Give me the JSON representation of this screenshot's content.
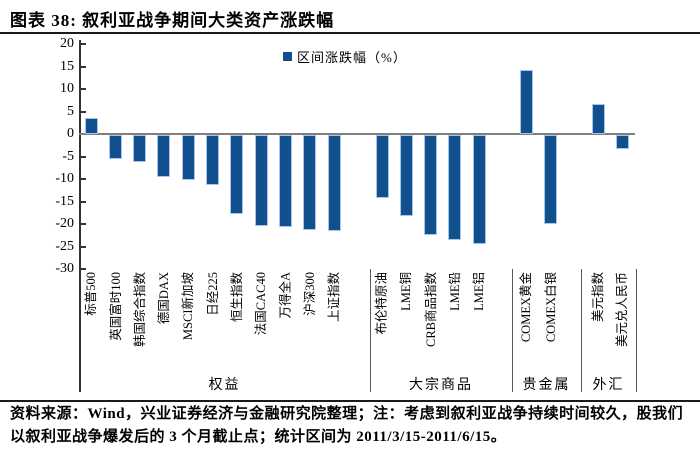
{
  "header": {
    "title": "图表 38:  叙利亚战争期间大类资产涨跌幅"
  },
  "chart_data": {
    "type": "bar",
    "title": "图表 38: 叙利亚战争期间大类资产涨跌幅",
    "legend": "区间涨跌幅（%）",
    "legend_position": "top-center",
    "grid": false,
    "ylim": [
      -30,
      20
    ],
    "ytick_step": 5,
    "ytick_labels": [
      "20",
      "15",
      "10",
      "5",
      "0",
      "-5",
      "-10",
      "-15",
      "-20",
      "-25",
      "-30"
    ],
    "bar_color": "#10508F",
    "bar_border_color": "#A9C5E8",
    "zero_line_color": "#7f7f7f",
    "groups": [
      {
        "label": "权益",
        "categories": [
          "标普500",
          "英国富时100",
          "韩国综合指数",
          "德国DAX",
          "MSCI新加坡",
          "日经225",
          "恒生指数",
          "法国CAC40",
          "万得全A",
          "沪深300",
          "上证指数"
        ],
        "values": [
          3.5,
          -5.3,
          -5.9,
          -9.4,
          -9.9,
          -11.0,
          -17.6,
          -20.3,
          -20.5,
          -21.2,
          -21.3
        ]
      },
      {
        "label": "大宗商品",
        "categories": [
          "布伦特原油",
          "LME铜",
          "CRB商品指数",
          "LME铅",
          "LME铝"
        ],
        "values": [
          -14.1,
          -17.9,
          -22.3,
          -23.4,
          -24.3
        ]
      },
      {
        "label": "贵金属",
        "categories": [
          "COMEX黄金",
          "COMEX白银"
        ],
        "values": [
          14.2,
          -19.7
        ]
      },
      {
        "label": "外汇",
        "categories": [
          "美元指数",
          "美元兑人民币"
        ],
        "values": [
          6.6,
          -3.0
        ]
      }
    ]
  },
  "footer": {
    "note": "资料来源：Wind，兴业证券经济与金融研究院整理；注：考虑到叙利亚战争持续时间较久，股我们以叙利亚战争爆发后的 3 个月截止点；统计区间为 2011/3/15-2011/6/15。"
  }
}
